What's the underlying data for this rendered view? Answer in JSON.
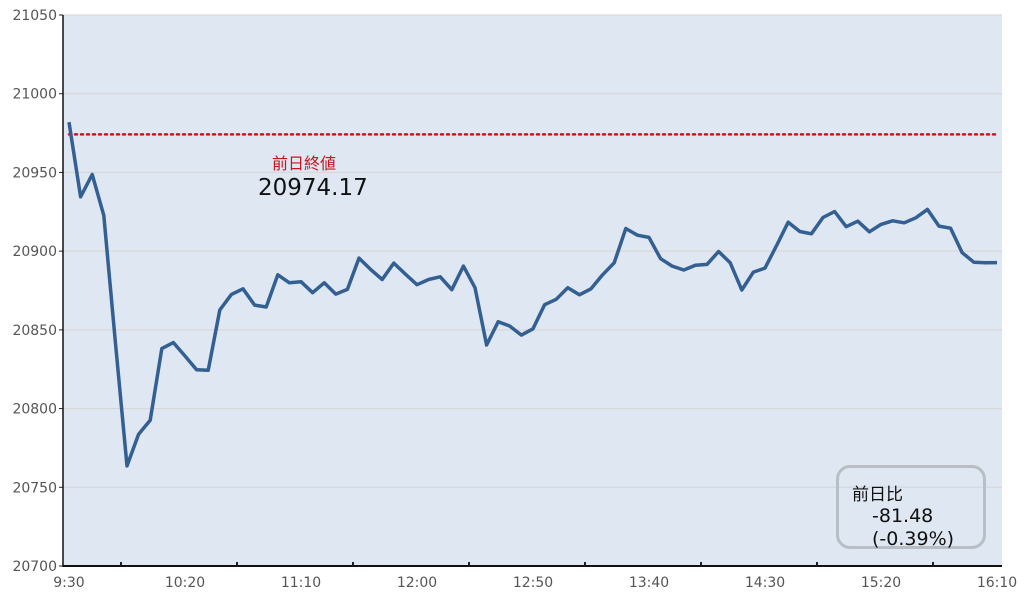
{
  "chart_data": {
    "type": "line",
    "title": "",
    "xlabel": "",
    "ylabel": "",
    "ylim": [
      20700,
      21050
    ],
    "yticks": [
      20700,
      20750,
      20800,
      20850,
      20900,
      20950,
      21000,
      21050
    ],
    "xlim": [
      "9:30",
      "16:10"
    ],
    "xtick_labels": [
      "9:30",
      "10:20",
      "11:10",
      "12:00",
      "12:50",
      "13:40",
      "14:30",
      "15:20",
      "16:10"
    ],
    "x_interval_minutes": 5,
    "grid": "horizontal",
    "colors": {
      "line": "#335f92",
      "background": "#dee7f2",
      "reference": "#c8161d",
      "grid": "#d9d4cf"
    },
    "series": [
      {
        "values": [
          20981.9,
          20934.5,
          20948.7,
          20922.7,
          20842,
          20763.6,
          20783.7,
          20792.6,
          20838.1,
          20841.9,
          20833.4,
          20824.7,
          20824.3,
          20862.6,
          20872.5,
          20876.1,
          20865.7,
          20864.5,
          20885,
          20879.9,
          20880.6,
          20873.6,
          20879.9,
          20872.7,
          20875.7,
          20895.6,
          20888.4,
          20882,
          20892.4,
          20885.4,
          20878.7,
          20882,
          20883.7,
          20875.5,
          20890.5,
          20876.8,
          20840.4,
          20855.2,
          20852.4,
          20846.7,
          20850.7,
          20866,
          20869.4,
          20876.8,
          20872.3,
          20876.1,
          20885,
          20892.6,
          20914.4,
          20910.1,
          20908.7,
          20895.2,
          20890.5,
          20888,
          20891,
          20891.6,
          20899.8,
          20892.6,
          20875.3,
          20886.7,
          20889.2,
          20903.6,
          20918.4,
          20912.5,
          20911,
          20921.4,
          20925.2,
          20915.5,
          20919,
          20912.3,
          20917,
          20919.3,
          20918,
          20921.2,
          20926.5,
          20915.9,
          20914.6,
          20899,
          20893,
          20892.6,
          20892.7
        ]
      }
    ],
    "reference_line": {
      "label": "前日終値",
      "value": 20974.17,
      "value_text": "20974.17"
    },
    "change_box": {
      "title": "前日比",
      "change": "-81.48",
      "percent": "(-0.39%)"
    }
  }
}
